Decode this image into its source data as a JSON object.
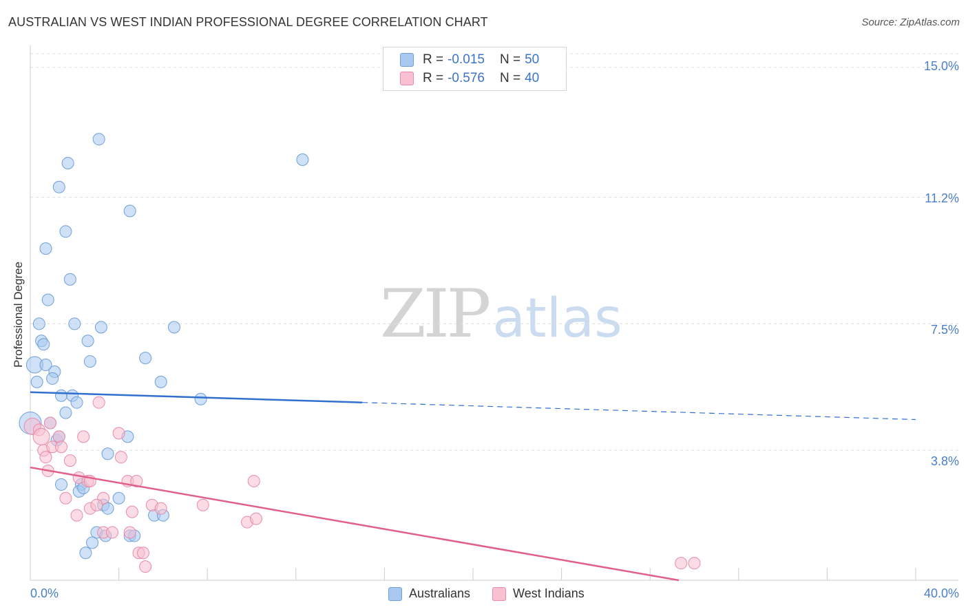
{
  "chart_data": {
    "type": "scatter",
    "title": "AUSTRALIAN VS WEST INDIAN PROFESSIONAL DEGREE CORRELATION CHART",
    "source": "Source: ZipAtlas.com",
    "xlabel": "",
    "ylabel": "Professional Degree",
    "xlim": [
      0,
      40
    ],
    "ylim": [
      0,
      15.4
    ],
    "x_ticks": [
      {
        "value": 0,
        "label": "0.0%"
      },
      {
        "value": 40,
        "label": "40.0%"
      }
    ],
    "y_ticks": [
      {
        "value": 3.8,
        "label": "3.8%"
      },
      {
        "value": 7.5,
        "label": "7.5%"
      },
      {
        "value": 11.2,
        "label": "11.2%"
      },
      {
        "value": 15.0,
        "label": "15.0%"
      }
    ],
    "watermark": {
      "part1": "ZIP",
      "part2": "atlas"
    },
    "legend": {
      "rows": [
        {
          "r_label": "R =",
          "r_value": "-0.015",
          "n_label": "N =",
          "n_value": "50"
        },
        {
          "r_label": "R =",
          "r_value": "-0.576",
          "n_label": "N =",
          "n_value": "40"
        }
      ]
    },
    "series": [
      {
        "name": "Australians",
        "color": "#a8c8f0",
        "stroke": "#6f9fd8",
        "line_color": "#2f6fce",
        "trend": {
          "x0": 0,
          "y0": 5.5,
          "x1": 40,
          "y1": 4.7,
          "solid_until": 15
        },
        "points": [
          [
            3.1,
            12.9,
            1
          ],
          [
            1.7,
            12.2,
            1
          ],
          [
            12.3,
            12.3,
            1
          ],
          [
            1.3,
            11.5,
            1
          ],
          [
            4.5,
            10.8,
            1
          ],
          [
            1.6,
            10.2,
            1
          ],
          [
            0.7,
            9.7,
            1
          ],
          [
            1.8,
            8.8,
            1
          ],
          [
            0.8,
            8.2,
            1
          ],
          [
            0.4,
            7.5,
            1
          ],
          [
            2.0,
            7.5,
            1
          ],
          [
            3.2,
            7.4,
            1
          ],
          [
            6.5,
            7.4,
            1
          ],
          [
            0.5,
            7.0,
            1
          ],
          [
            0.6,
            6.9,
            1
          ],
          [
            2.6,
            7.0,
            1
          ],
          [
            5.2,
            6.5,
            1
          ],
          [
            2.7,
            6.4,
            1
          ],
          [
            0.2,
            6.3,
            2
          ],
          [
            0.7,
            6.3,
            1
          ],
          [
            1.1,
            6.1,
            1
          ],
          [
            1.0,
            5.9,
            1
          ],
          [
            0.3,
            5.8,
            1
          ],
          [
            5.9,
            5.8,
            1
          ],
          [
            1.4,
            5.4,
            1
          ],
          [
            1.9,
            5.4,
            1
          ],
          [
            7.7,
            5.3,
            1
          ],
          [
            2.1,
            5.2,
            1
          ],
          [
            1.6,
            4.9,
            1
          ],
          [
            0.0,
            4.6,
            3
          ],
          [
            0.9,
            4.6,
            1
          ],
          [
            4.4,
            4.2,
            1
          ],
          [
            1.2,
            4.1,
            1
          ],
          [
            3.5,
            3.7,
            1
          ],
          [
            1.4,
            2.8,
            1
          ],
          [
            2.3,
            2.8,
            1
          ],
          [
            2.2,
            2.6,
            1
          ],
          [
            2.4,
            2.7,
            1
          ],
          [
            4.0,
            2.4,
            1
          ],
          [
            3.3,
            2.2,
            1
          ],
          [
            3.5,
            2.1,
            1
          ],
          [
            5.6,
            1.9,
            1
          ],
          [
            6.0,
            1.9,
            1
          ],
          [
            3.0,
            1.4,
            1
          ],
          [
            3.4,
            1.3,
            1
          ],
          [
            4.5,
            1.3,
            1
          ],
          [
            4.7,
            1.3,
            1
          ],
          [
            2.8,
            1.1,
            1
          ],
          [
            2.5,
            0.8,
            1
          ],
          [
            1.3,
            4.2,
            1
          ]
        ]
      },
      {
        "name": "West Indians",
        "color": "#f8c0d0",
        "stroke": "#e88aa8",
        "line_color": "#e0608a",
        "trend": {
          "x0": 0,
          "y0": 3.3,
          "x1": 29.3,
          "y1": 0
        },
        "points": [
          [
            0.1,
            4.5,
            2
          ],
          [
            0.4,
            4.4,
            1
          ],
          [
            0.9,
            4.6,
            1
          ],
          [
            0.5,
            4.2,
            2
          ],
          [
            1.3,
            4.2,
            1
          ],
          [
            3.1,
            5.2,
            1
          ],
          [
            4.0,
            4.3,
            1
          ],
          [
            2.4,
            4.2,
            1
          ],
          [
            0.6,
            3.8,
            1
          ],
          [
            1.0,
            3.9,
            1
          ],
          [
            1.4,
            3.9,
            1
          ],
          [
            0.7,
            3.6,
            1
          ],
          [
            1.8,
            3.5,
            1
          ],
          [
            4.1,
            3.6,
            1
          ],
          [
            0.8,
            3.2,
            1
          ],
          [
            2.2,
            3.0,
            1
          ],
          [
            2.6,
            2.9,
            1
          ],
          [
            2.7,
            2.9,
            1
          ],
          [
            4.4,
            2.9,
            1
          ],
          [
            4.8,
            2.9,
            1
          ],
          [
            10.1,
            2.9,
            1
          ],
          [
            1.6,
            2.4,
            1
          ],
          [
            3.3,
            2.4,
            1
          ],
          [
            2.7,
            2.1,
            1
          ],
          [
            3.0,
            2.2,
            1
          ],
          [
            5.5,
            2.2,
            1
          ],
          [
            5.9,
            2.1,
            1
          ],
          [
            7.8,
            2.2,
            1
          ],
          [
            2.1,
            1.9,
            1
          ],
          [
            4.6,
            2.0,
            1
          ],
          [
            9.8,
            1.7,
            1
          ],
          [
            10.2,
            1.8,
            1
          ],
          [
            3.3,
            1.4,
            1
          ],
          [
            3.7,
            1.4,
            1
          ],
          [
            4.5,
            1.4,
            1
          ],
          [
            4.9,
            0.8,
            1
          ],
          [
            5.1,
            0.8,
            1
          ],
          [
            5.2,
            0.4,
            1
          ],
          [
            29.4,
            0.5,
            1
          ],
          [
            30.0,
            0.5,
            1
          ]
        ]
      }
    ]
  }
}
